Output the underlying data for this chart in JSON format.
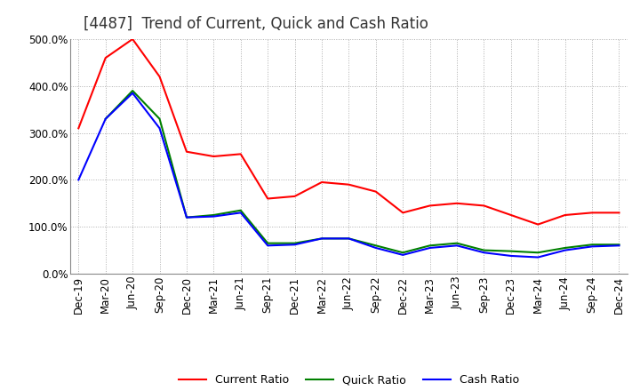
{
  "title": "[4487]  Trend of Current, Quick and Cash Ratio",
  "x_labels": [
    "Dec-19",
    "Mar-20",
    "Jun-20",
    "Sep-20",
    "Dec-20",
    "Mar-21",
    "Jun-21",
    "Sep-21",
    "Dec-21",
    "Mar-22",
    "Jun-22",
    "Sep-22",
    "Dec-22",
    "Mar-23",
    "Jun-23",
    "Sep-23",
    "Dec-23",
    "Mar-24",
    "Jun-24",
    "Sep-24",
    "Dec-24"
  ],
  "current_ratio": [
    310,
    460,
    500,
    420,
    260,
    250,
    255,
    160,
    165,
    195,
    190,
    175,
    130,
    145,
    150,
    145,
    125,
    105,
    125,
    130,
    130
  ],
  "quick_ratio": [
    null,
    330,
    390,
    330,
    120,
    125,
    135,
    65,
    65,
    75,
    75,
    60,
    45,
    60,
    65,
    50,
    48,
    45,
    55,
    62,
    62
  ],
  "cash_ratio": [
    200,
    330,
    385,
    310,
    120,
    122,
    130,
    60,
    62,
    75,
    75,
    55,
    40,
    55,
    60,
    45,
    38,
    35,
    50,
    58,
    60
  ],
  "ylim": [
    0,
    500
  ],
  "yticks": [
    0,
    100,
    200,
    300,
    400,
    500
  ],
  "line_colors": {
    "current": "#ff0000",
    "quick": "#008000",
    "cash": "#0000ff"
  },
  "legend_labels": [
    "Current Ratio",
    "Quick Ratio",
    "Cash Ratio"
  ],
  "background_color": "#ffffff",
  "grid_color": "#999999",
  "title_fontsize": 12,
  "axis_fontsize": 8.5
}
